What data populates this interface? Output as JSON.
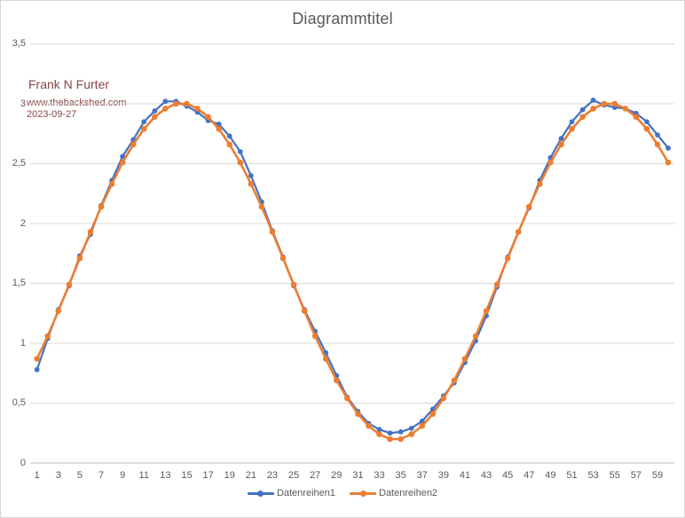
{
  "window": {
    "background": "#ffffff",
    "border_color": "#d6d6d6"
  },
  "title": "Diagrammtitel",
  "annotation": {
    "author": "Frank N Furter",
    "website": "www.thebackshed.com",
    "date": "2023-09-27",
    "color": "#8b4646"
  },
  "colors": {
    "series1": "#4472c4",
    "series2": "#ed7d31",
    "gridline": "#d9d9d9",
    "axis_line": "#bfbfbf",
    "tick_text": "#595959",
    "title_text": "#595959"
  },
  "legend": {
    "items": [
      {
        "label": "Datenreihen1",
        "color": "#4472c4"
      },
      {
        "label": "Datenreihen2",
        "color": "#ed7d31"
      }
    ],
    "position": "bottom"
  },
  "chart_data": {
    "type": "line",
    "title": "Diagrammtitel",
    "xlabel": "",
    "ylabel": "",
    "grid": true,
    "legend_position": "bottom",
    "decimal_separator": ",",
    "ylim": [
      0,
      3.5
    ],
    "xlim": [
      1,
      60
    ],
    "y_ticks": [
      {
        "value": 3.5,
        "label": "3,5"
      },
      {
        "value": 3,
        "label": "3"
      },
      {
        "value": 2.5,
        "label": "2,5"
      },
      {
        "value": 2,
        "label": "2"
      },
      {
        "value": 1.5,
        "label": "1,5"
      },
      {
        "value": 1,
        "label": "1"
      },
      {
        "value": 0.5,
        "label": "0,5"
      },
      {
        "value": 0,
        "label": "0"
      }
    ],
    "x_tick_labels": [
      "1",
      "3",
      "5",
      "7",
      "9",
      "11",
      "13",
      "15",
      "17",
      "19",
      "21",
      "23",
      "25",
      "27",
      "29",
      "31",
      "33",
      "35",
      "37",
      "39",
      "41",
      "43",
      "45",
      "47",
      "49",
      "51",
      "53",
      "55",
      "57",
      "59"
    ],
    "x": [
      1,
      2,
      3,
      4,
      5,
      6,
      7,
      8,
      9,
      10,
      11,
      12,
      13,
      14,
      15,
      16,
      17,
      18,
      19,
      20,
      21,
      22,
      23,
      24,
      25,
      26,
      27,
      28,
      29,
      30,
      31,
      32,
      33,
      34,
      35,
      36,
      37,
      38,
      39,
      40,
      41,
      42,
      43,
      44,
      45,
      46,
      47,
      48,
      49,
      50,
      51,
      52,
      53,
      54,
      55,
      56,
      57,
      58,
      59,
      60
    ],
    "series": [
      {
        "name": "Datenreihen1",
        "color": "#4472c4",
        "values": [
          0.78,
          1.04,
          1.28,
          1.48,
          1.73,
          1.91,
          2.15,
          2.36,
          2.56,
          2.7,
          2.85,
          2.94,
          3.02,
          3.02,
          2.98,
          2.93,
          2.86,
          2.83,
          2.73,
          2.6,
          2.4,
          2.18,
          1.94,
          1.72,
          1.48,
          1.28,
          1.1,
          0.92,
          0.73,
          0.55,
          0.43,
          0.33,
          0.28,
          0.25,
          0.26,
          0.29,
          0.35,
          0.45,
          0.56,
          0.67,
          0.84,
          1.02,
          1.23,
          1.47,
          1.72,
          1.93,
          2.13,
          2.36,
          2.55,
          2.71,
          2.85,
          2.95,
          3.03,
          2.99,
          2.97,
          2.96,
          2.92,
          2.85,
          2.74,
          2.63
        ]
      },
      {
        "name": "Datenreihen2",
        "color": "#ed7d31",
        "values": [
          0.87,
          1.06,
          1.27,
          1.49,
          1.71,
          1.93,
          2.14,
          2.33,
          2.51,
          2.66,
          2.79,
          2.89,
          2.96,
          3.0,
          3.0,
          2.96,
          2.89,
          2.79,
          2.66,
          2.51,
          2.33,
          2.14,
          1.93,
          1.71,
          1.49,
          1.27,
          1.06,
          0.87,
          0.69,
          0.54,
          0.41,
          0.31,
          0.24,
          0.2,
          0.2,
          0.24,
          0.31,
          0.41,
          0.54,
          0.69,
          0.87,
          1.06,
          1.27,
          1.49,
          1.71,
          1.93,
          2.14,
          2.33,
          2.51,
          2.66,
          2.79,
          2.89,
          2.96,
          3.0,
          3.0,
          2.96,
          2.89,
          2.79,
          2.66,
          2.51
        ]
      }
    ]
  }
}
